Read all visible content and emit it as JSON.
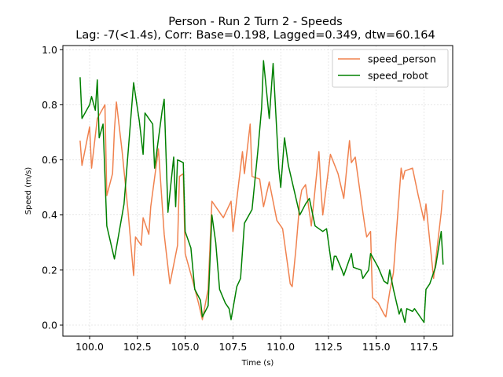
{
  "chart_data": {
    "type": "line",
    "title": "Person - Run 2 Turn 2 - Speeds",
    "subtitle": "Lag: -7(<1.4s), Corr: Base=0.198, Lagged=0.349, dtw=60.164",
    "xlabel": "Time (s)",
    "ylabel": "Speed (m/s)",
    "xlim": [
      98.6,
      119.0
    ],
    "ylim": [
      -0.04,
      1.015
    ],
    "xticks": [
      100.0,
      102.5,
      105.0,
      107.5,
      110.0,
      112.5,
      115.0,
      117.5
    ],
    "xtick_labels": [
      "100.0",
      "102.5",
      "105.0",
      "107.5",
      "110.0",
      "112.5",
      "115.0",
      "117.5"
    ],
    "yticks": [
      0.0,
      0.2,
      0.4,
      0.6,
      0.8,
      1.0
    ],
    "ytick_labels": [
      "0.0",
      "0.2",
      "0.4",
      "0.6",
      "0.8",
      "1.0"
    ],
    "grid": true,
    "legend_position": "top-right",
    "series": [
      {
        "name": "speed_person",
        "color": "#f0824f",
        "points": [
          [
            99.5,
            0.67
          ],
          [
            99.6,
            0.58
          ],
          [
            100.0,
            0.72
          ],
          [
            100.1,
            0.57
          ],
          [
            100.4,
            0.75
          ],
          [
            100.8,
            0.8
          ],
          [
            100.9,
            0.47
          ],
          [
            101.2,
            0.55
          ],
          [
            101.3,
            0.71
          ],
          [
            101.4,
            0.81
          ],
          [
            101.7,
            0.63
          ],
          [
            102.0,
            0.42
          ],
          [
            102.3,
            0.18
          ],
          [
            102.4,
            0.32
          ],
          [
            102.7,
            0.29
          ],
          [
            102.8,
            0.39
          ],
          [
            103.1,
            0.33
          ],
          [
            103.2,
            0.43
          ],
          [
            103.6,
            0.64
          ],
          [
            103.9,
            0.33
          ],
          [
            104.0,
            0.27
          ],
          [
            104.2,
            0.15
          ],
          [
            104.6,
            0.29
          ],
          [
            104.7,
            0.54
          ],
          [
            104.9,
            0.55
          ],
          [
            105.0,
            0.26
          ],
          [
            105.4,
            0.16
          ],
          [
            105.7,
            0.08
          ],
          [
            105.9,
            0.02
          ],
          [
            106.2,
            0.13
          ],
          [
            106.4,
            0.45
          ],
          [
            107.0,
            0.39
          ],
          [
            107.4,
            0.45
          ],
          [
            107.5,
            0.34
          ],
          [
            108.0,
            0.63
          ],
          [
            108.1,
            0.55
          ],
          [
            108.4,
            0.73
          ],
          [
            108.5,
            0.54
          ],
          [
            108.9,
            0.53
          ],
          [
            109.1,
            0.43
          ],
          [
            109.4,
            0.52
          ],
          [
            109.8,
            0.38
          ],
          [
            110.1,
            0.35
          ],
          [
            110.5,
            0.15
          ],
          [
            110.6,
            0.14
          ],
          [
            110.8,
            0.28
          ],
          [
            111.0,
            0.45
          ],
          [
            111.1,
            0.49
          ],
          [
            111.3,
            0.51
          ],
          [
            111.6,
            0.36
          ],
          [
            112.0,
            0.63
          ],
          [
            112.1,
            0.5
          ],
          [
            112.2,
            0.4
          ],
          [
            112.6,
            0.62
          ],
          [
            113.0,
            0.55
          ],
          [
            113.3,
            0.46
          ],
          [
            113.6,
            0.67
          ],
          [
            113.7,
            0.59
          ],
          [
            113.9,
            0.61
          ],
          [
            114.0,
            0.56
          ],
          [
            114.3,
            0.41
          ],
          [
            114.4,
            0.36
          ],
          [
            114.5,
            0.32
          ],
          [
            114.7,
            0.34
          ],
          [
            114.8,
            0.1
          ],
          [
            115.1,
            0.08
          ],
          [
            115.4,
            0.04
          ],
          [
            115.5,
            0.03
          ],
          [
            115.7,
            0.12
          ],
          [
            115.9,
            0.19
          ],
          [
            116.3,
            0.57
          ],
          [
            116.4,
            0.53
          ],
          [
            116.5,
            0.56
          ],
          [
            116.9,
            0.57
          ],
          [
            117.2,
            0.47
          ],
          [
            117.4,
            0.41
          ],
          [
            117.5,
            0.38
          ],
          [
            117.6,
            0.44
          ],
          [
            118.0,
            0.17
          ],
          [
            118.4,
            0.41
          ],
          [
            118.5,
            0.49
          ]
        ]
      },
      {
        "name": "speed_robot",
        "color": "#008000",
        "points": [
          [
            99.5,
            0.9
          ],
          [
            99.6,
            0.75
          ],
          [
            100.0,
            0.8
          ],
          [
            100.1,
            0.83
          ],
          [
            100.3,
            0.78
          ],
          [
            100.4,
            0.89
          ],
          [
            100.5,
            0.68
          ],
          [
            100.7,
            0.73
          ],
          [
            100.9,
            0.36
          ],
          [
            101.3,
            0.24
          ],
          [
            101.8,
            0.44
          ],
          [
            102.2,
            0.79
          ],
          [
            102.3,
            0.88
          ],
          [
            102.6,
            0.74
          ],
          [
            102.8,
            0.62
          ],
          [
            102.9,
            0.77
          ],
          [
            103.3,
            0.73
          ],
          [
            103.4,
            0.57
          ],
          [
            103.8,
            0.78
          ],
          [
            103.9,
            0.82
          ],
          [
            104.1,
            0.41
          ],
          [
            104.4,
            0.61
          ],
          [
            104.5,
            0.43
          ],
          [
            104.6,
            0.6
          ],
          [
            104.9,
            0.59
          ],
          [
            105.0,
            0.34
          ],
          [
            105.3,
            0.28
          ],
          [
            105.5,
            0.13
          ],
          [
            105.8,
            0.09
          ],
          [
            105.9,
            0.03
          ],
          [
            106.2,
            0.07
          ],
          [
            106.4,
            0.4
          ],
          [
            106.6,
            0.3
          ],
          [
            106.8,
            0.13
          ],
          [
            107.1,
            0.08
          ],
          [
            107.3,
            0.06
          ],
          [
            107.4,
            0.02
          ],
          [
            107.7,
            0.14
          ],
          [
            107.9,
            0.17
          ],
          [
            108.1,
            0.37
          ],
          [
            108.5,
            0.42
          ],
          [
            108.8,
            0.63
          ],
          [
            109.0,
            0.79
          ],
          [
            109.1,
            0.96
          ],
          [
            109.4,
            0.75
          ],
          [
            109.6,
            0.95
          ],
          [
            109.9,
            0.57
          ],
          [
            110.0,
            0.5
          ],
          [
            110.2,
            0.68
          ],
          [
            110.4,
            0.58
          ],
          [
            110.7,
            0.49
          ],
          [
            111.0,
            0.4
          ],
          [
            111.3,
            0.44
          ],
          [
            111.5,
            0.46
          ],
          [
            111.8,
            0.36
          ],
          [
            112.2,
            0.34
          ],
          [
            112.4,
            0.35
          ],
          [
            112.7,
            0.2
          ],
          [
            112.8,
            0.25
          ],
          [
            112.9,
            0.25
          ],
          [
            113.2,
            0.2
          ],
          [
            113.3,
            0.18
          ],
          [
            113.7,
            0.26
          ],
          [
            113.8,
            0.21
          ],
          [
            114.2,
            0.2
          ],
          [
            114.3,
            0.17
          ],
          [
            114.6,
            0.2
          ],
          [
            114.7,
            0.26
          ],
          [
            115.1,
            0.21
          ],
          [
            115.4,
            0.16
          ],
          [
            115.6,
            0.15
          ],
          [
            115.7,
            0.2
          ],
          [
            115.9,
            0.13
          ],
          [
            116.2,
            0.04
          ],
          [
            116.3,
            0.06
          ],
          [
            116.5,
            0.01
          ],
          [
            116.6,
            0.06
          ],
          [
            116.9,
            0.05
          ],
          [
            117.0,
            0.06
          ],
          [
            117.3,
            0.03
          ],
          [
            117.5,
            0.01
          ],
          [
            117.6,
            0.13
          ],
          [
            117.8,
            0.15
          ],
          [
            118.1,
            0.21
          ],
          [
            118.4,
            0.34
          ],
          [
            118.5,
            0.22
          ]
        ]
      }
    ]
  }
}
